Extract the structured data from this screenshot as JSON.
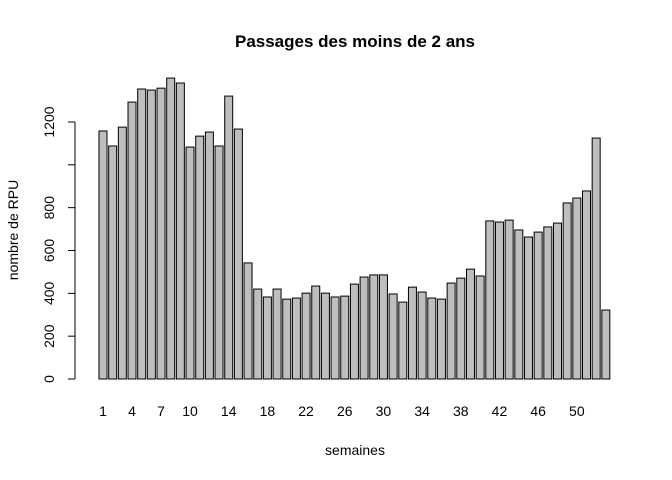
{
  "chart_data": {
    "type": "bar",
    "title": "Passages des moins de 2 ans",
    "xlabel": "semaines",
    "ylabel": "nombre de RPU",
    "categories": [
      "1",
      null,
      null,
      "4",
      null,
      null,
      "7",
      null,
      null,
      "10",
      null,
      null,
      null,
      "14",
      null,
      null,
      null,
      "18",
      null,
      null,
      null,
      "22",
      null,
      null,
      null,
      "26",
      null,
      null,
      null,
      "30",
      null,
      null,
      null,
      "34",
      null,
      null,
      null,
      "38",
      null,
      null,
      null,
      "42",
      null,
      null,
      null,
      "46",
      null,
      null,
      null,
      "50",
      null,
      null,
      null
    ],
    "values": [
      1158,
      1088,
      1176,
      1293,
      1354,
      1349,
      1358,
      1405,
      1382,
      1083,
      1134,
      1153,
      1088,
      1321,
      1167,
      542,
      420,
      383,
      420,
      373,
      378,
      401,
      434,
      401,
      383,
      387,
      443,
      476,
      486,
      486,
      397,
      359,
      429,
      406,
      378,
      373,
      448,
      471,
      513,
      481,
      738,
      733,
      742,
      696,
      663,
      686,
      710,
      728,
      822,
      845,
      878,
      1125,
      322
    ],
    "color": "#bebebe",
    "ylim": [
      0,
      1400
    ],
    "yticks": [
      0,
      200,
      400,
      600,
      800,
      1200
    ],
    "ytick_marks": [
      0,
      200,
      400,
      600,
      800,
      1000,
      1200
    ]
  }
}
